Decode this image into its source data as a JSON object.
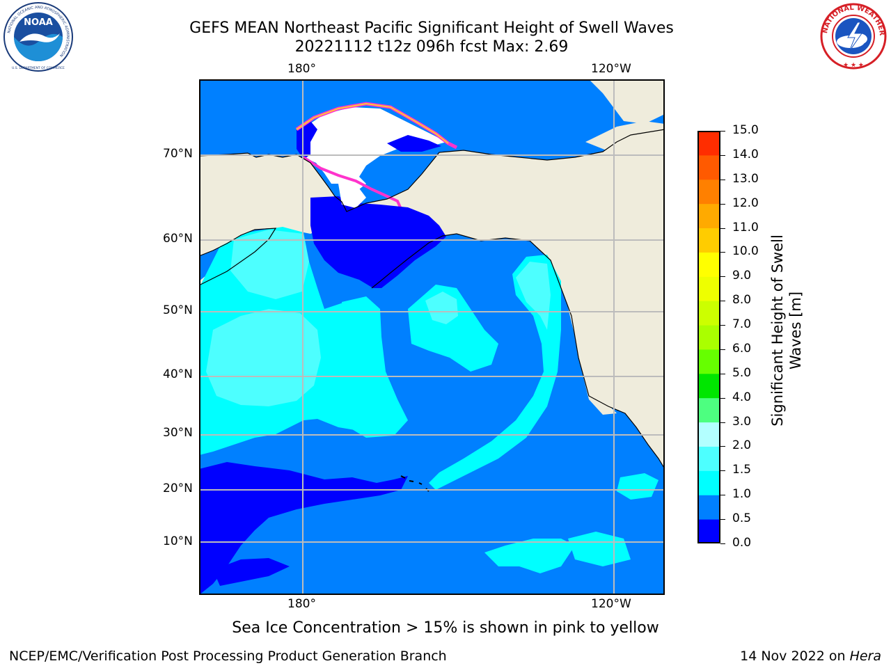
{
  "header": {
    "title_line1": "GEFS MEAN Northeast Pacific Significant Height of Swell Waves",
    "title_line2": "20221112 t12z 096h fcst   Max: 2.69"
  },
  "logos": {
    "left": {
      "name": "NOAA",
      "ring_text": "NATIONAL OCEANIC AND ATMOSPHERIC ADMINISTRATION",
      "bottom_text": "U.S. DEPARTMENT OF COMMERCE"
    },
    "right": {
      "ring_text": "NATIONAL WEATHER SERVICE"
    }
  },
  "map": {
    "top_lon_labels": [
      "180°",
      "120°W"
    ],
    "bottom_lon_labels": [
      "180°",
      "120°W"
    ],
    "lat_labels": [
      "70°N",
      "60°N",
      "50°N",
      "40°N",
      "30°N",
      "20°N",
      "10°N"
    ],
    "colors": {
      "ocean_0_05": "#0000ff",
      "ocean_05_1": "#0080ff",
      "ocean_1_15": "#00ffff",
      "ocean_15_2": "#4dffff",
      "ocean_2_3": "#b3ffff",
      "land": "#efecdc",
      "grid": "#bcbcbc",
      "ice_edge": "#ff33cc",
      "ice_yellow": "#ffcc33"
    }
  },
  "colorbar": {
    "label_line1": "Significant Height of Swell",
    "label_line2": "Waves [m]",
    "ticks": [
      "15.0",
      "14.0",
      "13.0",
      "12.0",
      "11.0",
      "10.0",
      "9.0",
      "8.0",
      "7.0",
      "6.0",
      "5.0",
      "4.0",
      "3.0",
      "2.0",
      "1.5",
      "1.0",
      "0.5",
      "0.0"
    ],
    "colors": [
      "#0000ff",
      "#0080ff",
      "#00ffff",
      "#4dffff",
      "#b3ffff",
      "#4dff80",
      "#00e600",
      "#66ff00",
      "#aaff00",
      "#ccff00",
      "#eeff00",
      "#ffff00",
      "#ffcc00",
      "#ffaa00",
      "#ff8000",
      "#ff5a00",
      "#ff2d00"
    ]
  },
  "caption": "Sea Ice Concentration > 15% is shown in pink to yellow",
  "footer": {
    "left": "NCEP/EMC/Verification Post Processing Product Generation Branch",
    "right_prefix": "14 Nov 2022 on ",
    "right_italic": "Hera"
  }
}
